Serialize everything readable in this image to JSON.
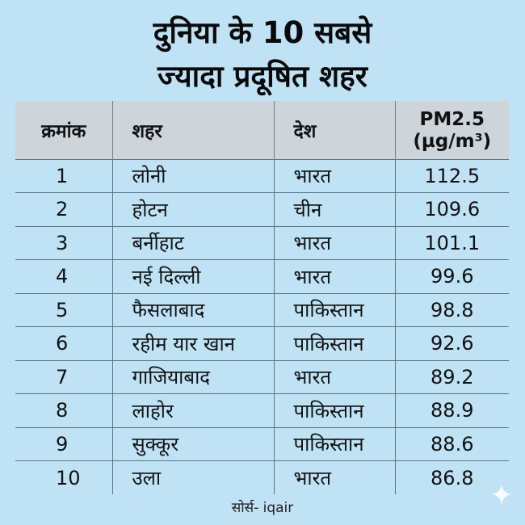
{
  "title": {
    "line1": "दुनिया के 10 सबसे",
    "line2": "ज्यादा प्रदूषित शहर"
  },
  "chart_data": {
    "type": "table",
    "columns": [
      "क्रमांक",
      "शहर",
      "देश",
      "PM2.5 (µg/m³)"
    ],
    "header_pm_line1": "PM2.5",
    "header_pm_line2": "(µg/m³)",
    "rows": [
      {
        "rank": "1",
        "city": "लोनी",
        "country": "भारत",
        "pm25": "112.5"
      },
      {
        "rank": "2",
        "city": "होटन",
        "country": "चीन",
        "pm25": "109.6"
      },
      {
        "rank": "3",
        "city": "बर्नीहाट",
        "country": "भारत",
        "pm25": "101.1"
      },
      {
        "rank": "4",
        "city": "नई दिल्ली",
        "country": "भारत",
        "pm25": "99.6"
      },
      {
        "rank": "5",
        "city": "फैसलाबाद",
        "country": "पाकिस्तान",
        "pm25": "98.8"
      },
      {
        "rank": "6",
        "city": "रहीम यार खान",
        "country": "पाकिस्तान",
        "pm25": "92.6"
      },
      {
        "rank": "7",
        "city": "गाजियाबाद",
        "country": "भारत",
        "pm25": "89.2"
      },
      {
        "rank": "8",
        "city": "लाहोर",
        "country": "पाकिस्तान",
        "pm25": "88.9"
      },
      {
        "rank": "9",
        "city": "सुक्कूर",
        "country": "पाकिस्तान",
        "pm25": "88.6"
      },
      {
        "rank": "10",
        "city": "उला",
        "country": "भारत",
        "pm25": "86.8"
      }
    ]
  },
  "source": "सोर्स- iqair",
  "colors": {
    "background": "#bfe2f4",
    "header_fill": "#cdd4da",
    "rule": "#5e7380"
  },
  "icons": {
    "corner": "sparkle-icon"
  }
}
